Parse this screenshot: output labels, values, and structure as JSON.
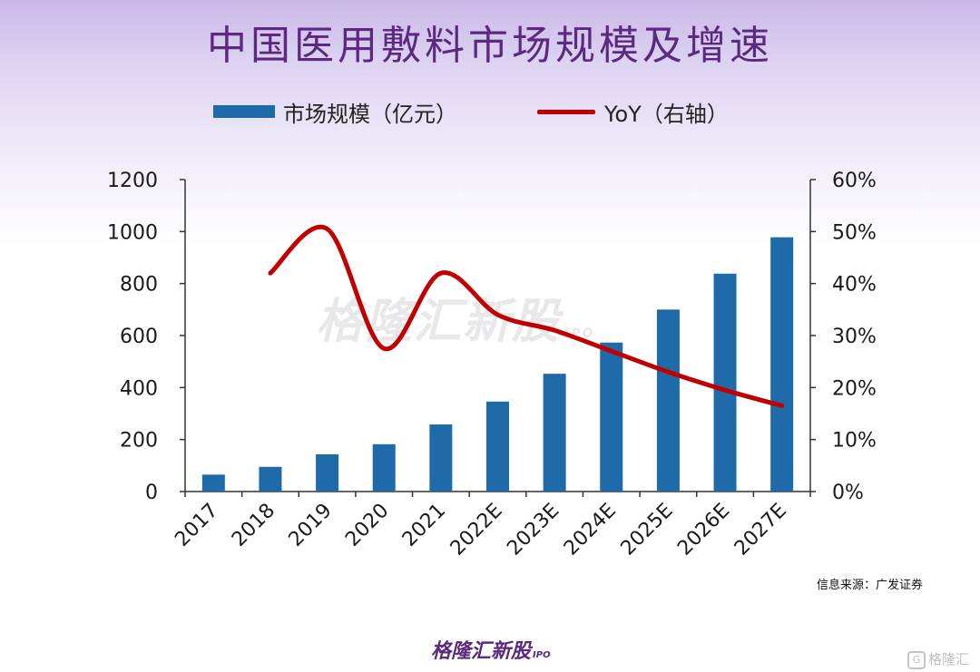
{
  "title": "中国医用敷料市场规模及增速",
  "legend": {
    "bar_label": "市场规模（亿元）",
    "line_label": "YoY（右轴）"
  },
  "source": "信息来源：广发证券",
  "watermark": {
    "text": "格隆汇新股",
    "sub": "IPO"
  },
  "brand": {
    "text": "格隆汇新股",
    "sub": "IPO"
  },
  "corner_logo": {
    "mark": "G",
    "text": "格隆汇"
  },
  "colors": {
    "bar": "#1f6aa8",
    "line": "#c00000",
    "title": "#5b2a7e"
  },
  "chart_data": {
    "type": "bar",
    "title": "中国医用敷料市场规模及增速",
    "categories": [
      "2017",
      "2018",
      "2019",
      "2020",
      "2021",
      "2022E",
      "2023E",
      "2024E",
      "2025E",
      "2026E",
      "2027E"
    ],
    "series": [
      {
        "name": "市场规模（亿元）",
        "type": "bar",
        "axis": "left",
        "values": [
          65,
          95,
          143,
          182,
          258,
          346,
          453,
          573,
          700,
          838,
          978
        ]
      },
      {
        "name": "YoY（右轴）",
        "type": "line",
        "axis": "right",
        "values": [
          null,
          0.42,
          0.505,
          0.275,
          0.42,
          0.34,
          0.31,
          0.27,
          0.23,
          0.195,
          0.165
        ]
      }
    ],
    "y_left": {
      "lim": [
        0,
        1200
      ],
      "ticks": [
        "0",
        "200",
        "400",
        "600",
        "800",
        "1000",
        "1200"
      ]
    },
    "y_right": {
      "lim": [
        0,
        0.6
      ],
      "ticks": [
        "0%",
        "10%",
        "20%",
        "30%",
        "40%",
        "50%",
        "60%"
      ]
    },
    "grid": false,
    "legend_position": "top"
  }
}
